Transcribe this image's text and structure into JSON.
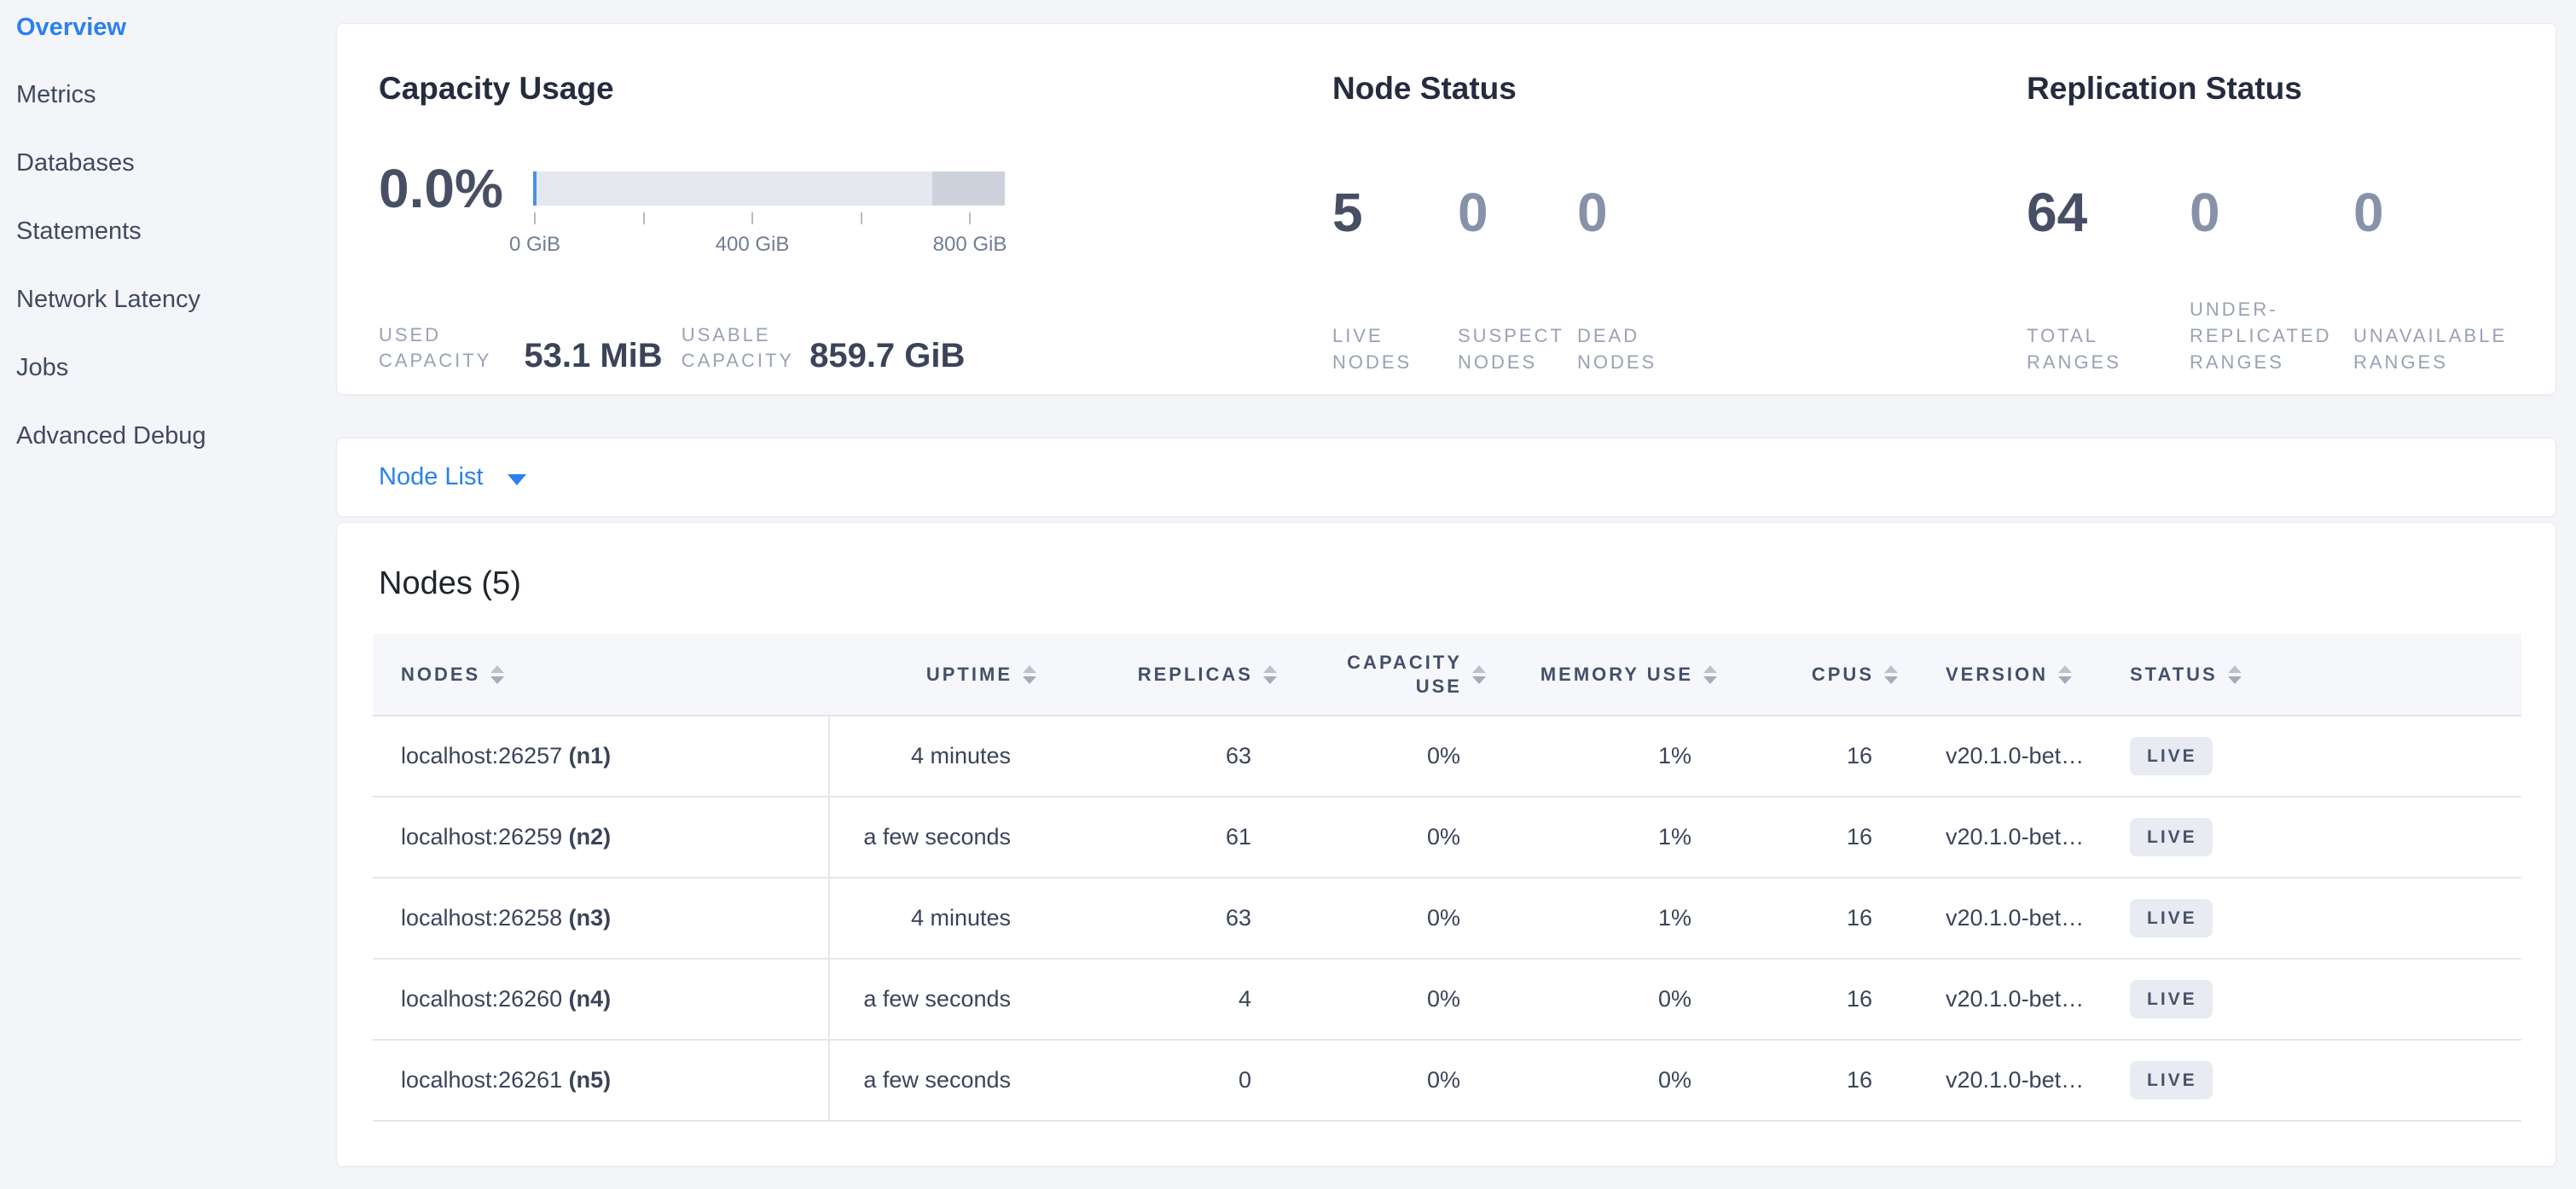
{
  "colors": {
    "accent": "#2b80f0",
    "page_bg": "#f4f5f9",
    "card_border": "#e7e9ee",
    "heading": "#242c3e",
    "text": "#3a4459",
    "muted": "#99a2b4",
    "stat_primary": "#474f64",
    "stat_secondary": "#8792aa",
    "bar_light": "#e6e8ef",
    "bar_dark": "#ced2dc",
    "bar_used": "#4a90e8",
    "header_bg": "#f6f7fa",
    "row_border": "#e3e6ec",
    "badge_bg": "#e8ebf2",
    "badge_text": "#47536b"
  },
  "sidebar": {
    "items": [
      {
        "label": "Overview",
        "active": true
      },
      {
        "label": "Metrics",
        "active": false
      },
      {
        "label": "Databases",
        "active": false
      },
      {
        "label": "Statements",
        "active": false
      },
      {
        "label": "Network Latency",
        "active": false
      },
      {
        "label": "Jobs",
        "active": false
      },
      {
        "label": "Advanced Debug",
        "active": false
      }
    ]
  },
  "capacity_panel": {
    "title": "Capacity Usage",
    "percent": "0.0%",
    "bar": {
      "dark_pct": 15.4,
      "used_pct": 0.006
    },
    "axis_labels": [
      "0 GiB",
      "400 GiB",
      "800 GiB"
    ],
    "used": {
      "label": "USED\nCAPACITY",
      "value": "53.1 MiB"
    },
    "usable": {
      "label": "USABLE\nCAPACITY",
      "value": "859.7 GiB"
    }
  },
  "node_status_panel": {
    "title": "Node Status",
    "stats": [
      {
        "value": "5",
        "label": "LIVE\nNODES"
      },
      {
        "value": "0",
        "label": "SUSPECT\nNODES"
      },
      {
        "value": "0",
        "label": "DEAD\nNODES"
      }
    ]
  },
  "replication_panel": {
    "title": "Replication Status",
    "stats": [
      {
        "value": "64",
        "label": "TOTAL\nRANGES"
      },
      {
        "value": "0",
        "label": "UNDER-\nREPLICATED\nRANGES"
      },
      {
        "value": "0",
        "label": "UNAVAILABLE\nRANGES"
      }
    ]
  },
  "node_list": {
    "label": "Node List"
  },
  "nodes_section": {
    "title": "Nodes (5)",
    "columns": {
      "nodes": "NODES",
      "uptime": "UPTIME",
      "replicas": "REPLICAS",
      "capacity_use": "CAPACITY\nUSE",
      "memory_use": "MEMORY USE",
      "cpus": "CPUS",
      "version": "VERSION",
      "status": "STATUS"
    },
    "rows": [
      {
        "address": "localhost:26257",
        "id": "(n1)",
        "uptime": "4 minutes",
        "replicas": "63",
        "capacity_use": "0%",
        "memory_use": "1%",
        "cpus": "16",
        "version": "v20.1.0-bet…",
        "status": "LIVE"
      },
      {
        "address": "localhost:26259",
        "id": "(n2)",
        "uptime": "a few seconds",
        "replicas": "61",
        "capacity_use": "0%",
        "memory_use": "1%",
        "cpus": "16",
        "version": "v20.1.0-bet…",
        "status": "LIVE"
      },
      {
        "address": "localhost:26258",
        "id": "(n3)",
        "uptime": "4 minutes",
        "replicas": "63",
        "capacity_use": "0%",
        "memory_use": "1%",
        "cpus": "16",
        "version": "v20.1.0-bet…",
        "status": "LIVE"
      },
      {
        "address": "localhost:26260",
        "id": "(n4)",
        "uptime": "a few seconds",
        "replicas": "4",
        "capacity_use": "0%",
        "memory_use": "0%",
        "cpus": "16",
        "version": "v20.1.0-bet…",
        "status": "LIVE"
      },
      {
        "address": "localhost:26261",
        "id": "(n5)",
        "uptime": "a few seconds",
        "replicas": "0",
        "capacity_use": "0%",
        "memory_use": "0%",
        "cpus": "16",
        "version": "v20.1.0-bet…",
        "status": "LIVE"
      }
    ]
  }
}
